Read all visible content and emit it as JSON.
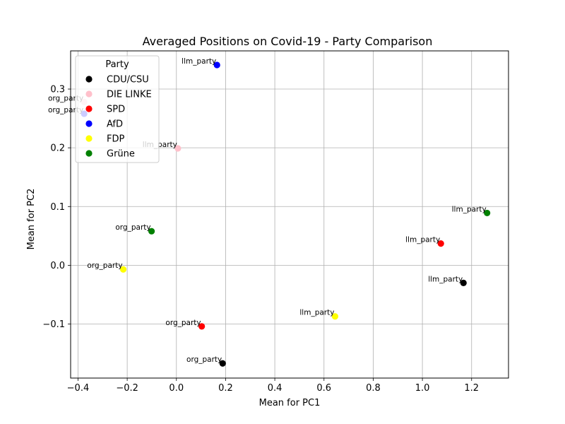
{
  "chart_data": {
    "type": "scatter",
    "title": "Averaged Positions on Covid-19 - Party Comparison",
    "xlabel": "Mean for PC1",
    "ylabel": "Mean for PC2",
    "xlim": [
      -0.43,
      1.35
    ],
    "ylim": [
      -0.192,
      0.365
    ],
    "xticks": [
      -0.4,
      -0.2,
      0.0,
      0.2,
      0.4,
      0.6,
      0.8,
      1.0,
      1.2
    ],
    "xtick_labels": [
      "−0.4",
      "−0.2",
      "0.0",
      "0.2",
      "0.4",
      "0.6",
      "0.8",
      "1.0",
      "1.2"
    ],
    "yticks": [
      -0.1,
      0.0,
      0.1,
      0.2,
      0.3
    ],
    "ytick_labels": [
      "−0.1",
      "0.0",
      "0.1",
      "0.2",
      "0.3"
    ],
    "grid": true,
    "legend": {
      "title": "Party",
      "placement": "top-left",
      "entries": [
        {
          "name": "CDU/CSU",
          "color": "#000000"
        },
        {
          "name": "DIE LINKE",
          "color": "#ffc0cb"
        },
        {
          "name": "SPD",
          "color": "#ff0000"
        },
        {
          "name": "AfD",
          "color": "#0000ff"
        },
        {
          "name": "FDP",
          "color": "#ffff00"
        },
        {
          "name": "Grüne",
          "color": "#008000"
        }
      ]
    },
    "points": [
      {
        "party": "CDU/CSU",
        "label": "org_party",
        "x": 0.188,
        "y": -0.167,
        "color": "#000000"
      },
      {
        "party": "CDU/CSU",
        "label": "llm_party",
        "x": 1.167,
        "y": -0.03,
        "color": "#000000"
      },
      {
        "party": "DIE LINKE",
        "label": "org_party",
        "x": -0.375,
        "y": 0.278,
        "color": "#ffc0cb"
      },
      {
        "party": "DIE LINKE",
        "label": "llm_party",
        "x": 0.006,
        "y": 0.199,
        "color": "#ffc0cb"
      },
      {
        "party": "SPD",
        "label": "org_party",
        "x": 0.103,
        "y": -0.104,
        "color": "#ff0000"
      },
      {
        "party": "SPD",
        "label": "llm_party",
        "x": 1.075,
        "y": 0.037,
        "color": "#ff0000"
      },
      {
        "party": "AfD",
        "label": "org_party",
        "x": -0.375,
        "y": 0.258,
        "color": "#0000ff"
      },
      {
        "party": "AfD",
        "label": "llm_party",
        "x": 0.165,
        "y": 0.341,
        "color": "#0000ff"
      },
      {
        "party": "FDP",
        "label": "org_party",
        "x": -0.216,
        "y": -0.007,
        "color": "#ffff00"
      },
      {
        "party": "FDP",
        "label": "llm_party",
        "x": 0.645,
        "y": -0.087,
        "color": "#ffff00"
      },
      {
        "party": "Grüne",
        "label": "org_party",
        "x": -0.101,
        "y": 0.058,
        "color": "#008000"
      },
      {
        "party": "Grüne",
        "label": "llm_party",
        "x": 1.263,
        "y": 0.089,
        "color": "#008000"
      }
    ]
  }
}
